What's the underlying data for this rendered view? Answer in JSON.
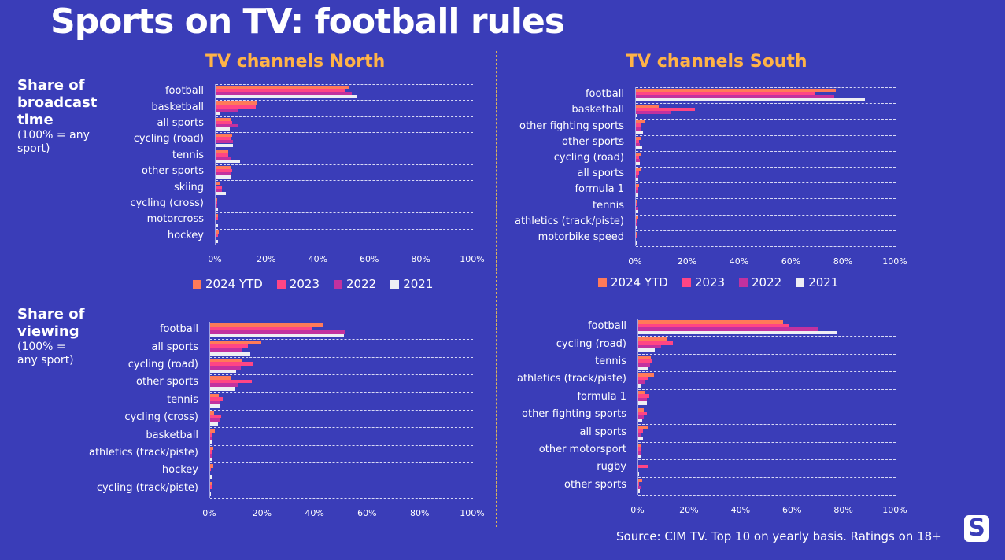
{
  "title": "Sports on TV: football rules",
  "side_labels": {
    "broadcast": {
      "title": "Share of broadcast time",
      "note": "(100% = any sport)"
    },
    "viewing": {
      "title": "Share of viewing",
      "note": "(100% = any sport)"
    }
  },
  "source": "Source: CIM TV. Top 10 on yearly basis. Ratings on 18+",
  "logo": "S",
  "colors": {
    "2024 YTD": "#ff7a59",
    "2023": "#ff4585",
    "2022": "#c2319f",
    "2021": "#eeeef4",
    "background": "#3a3db8",
    "title": "#ffb347"
  },
  "chart_data": [
    {
      "type": "bar",
      "orientation": "horizontal",
      "title": "TV channels North",
      "panel": "broadcast",
      "series_names": [
        "2024 YTD",
        "2023",
        "2022",
        "2021"
      ],
      "xlim": [
        0,
        100
      ],
      "ticks": [
        "0%",
        "20%",
        "40%",
        "60%",
        "80%",
        "100%"
      ],
      "categories": [
        "football",
        "basketball",
        "all sports",
        "cycling (road)",
        "tennis",
        "other sports",
        "skiing",
        "cycling (cross)",
        "motorcross",
        "hockey"
      ],
      "series": [
        {
          "name": "2024 YTD",
          "values": [
            51.7,
            16.1,
            5.9,
            6.5,
            5.0,
            5.7,
            1.6,
            0.6,
            1.0,
            1.1
          ]
        },
        {
          "name": "2023",
          "values": [
            50.1,
            15.7,
            6.5,
            5.9,
            4.9,
            6.5,
            2.5,
            0.7,
            0.9,
            0.8
          ]
        },
        {
          "name": "2022",
          "values": [
            53.0,
            8.7,
            9.0,
            6.8,
            5.9,
            6.2,
            2.5,
            0.7,
            0.0,
            0.3
          ]
        },
        {
          "name": "2021",
          "values": [
            55.1,
            1.5,
            5.5,
            6.8,
            9.4,
            5.9,
            4.1,
            0.9,
            0.9,
            0.9
          ]
        }
      ]
    },
    {
      "type": "bar",
      "orientation": "horizontal",
      "title": "TV channels South",
      "panel": "broadcast",
      "series_names": [
        "2024 YTD",
        "2023",
        "2022",
        "2021"
      ],
      "xlim": [
        0,
        100
      ],
      "ticks": [
        "0%",
        "20%",
        "40%",
        "60%",
        "80%",
        "100%"
      ],
      "categories": [
        "football",
        "basketball",
        "other fighting sports",
        "other sports",
        "cycling (road)",
        "all sports",
        "formula 1",
        "tennis",
        "athletics (track/piste)",
        "motorbike  speed"
      ],
      "series": [
        {
          "name": "2024 YTD",
          "values": [
            76.9,
            8.8,
            3.2,
            1.8,
            2.1,
            1.8,
            1.1,
            0.6,
            0.8,
            0.3
          ]
        },
        {
          "name": "2023",
          "values": [
            68.7,
            22.6,
            1.8,
            1.2,
            1.2,
            1.1,
            0.9,
            0.5,
            0.4,
            0.2
          ]
        },
        {
          "name": "2022",
          "values": [
            76.3,
            13.3,
            2.1,
            1.5,
            1.5,
            0.9,
            0.9,
            0.9,
            0.4,
            0.0
          ]
        },
        {
          "name": "2021",
          "values": [
            88.1,
            0.2,
            2.6,
            2.4,
            1.5,
            0.9,
            0.9,
            0.9,
            0.5,
            0.3
          ]
        }
      ]
    },
    {
      "type": "bar",
      "orientation": "horizontal",
      "title": "",
      "panel": "viewing-north",
      "series_names": [
        "2024 YTD",
        "2023",
        "2022",
        "2021"
      ],
      "xlim": [
        0,
        100
      ],
      "ticks": [
        "0%",
        "20%",
        "40%",
        "60%",
        "80%",
        "100%"
      ],
      "categories": [
        "football",
        "all sports",
        "cycling (road)",
        "other sports",
        "tennis",
        "cycling (cross)",
        "basketball",
        "athletics (track/piste)",
        "hockey",
        "cycling (track/piste)"
      ],
      "series": [
        {
          "name": "2024 YTD",
          "values": [
            43.1,
            19.6,
            12.1,
            7.9,
            3.4,
            1.5,
            1.9,
            1.2,
            1.3,
            0.7
          ]
        },
        {
          "name": "2023",
          "values": [
            39.0,
            14.4,
            16.5,
            15.8,
            4.8,
            4.3,
            0.7,
            0.7,
            0.4,
            0.7
          ]
        },
        {
          "name": "2022",
          "values": [
            51.5,
            11.9,
            11.6,
            10.8,
            4.0,
            4.0,
            0.7,
            0.5,
            0.0,
            0.0
          ]
        },
        {
          "name": "2021",
          "values": [
            50.9,
            15.4,
            9.8,
            9.2,
            3.5,
            3.0,
            1.0,
            1.0,
            0.6,
            0.3
          ]
        }
      ]
    },
    {
      "type": "bar",
      "orientation": "horizontal",
      "title": "",
      "panel": "viewing-south",
      "series_names": [
        "2024 YTD",
        "2023",
        "2022",
        "2021"
      ],
      "xlim": [
        0,
        100
      ],
      "ticks": [
        "0%",
        "20%",
        "40%",
        "60%",
        "80%",
        "100%"
      ],
      "categories": [
        "football",
        "cycling (road)",
        "tennis",
        "athletics (track/piste)",
        "formula 1",
        "other fighting sports",
        "all sports",
        "other motorsport",
        "rugby",
        "other sports"
      ],
      "series": [
        {
          "name": "2024 YTD",
          "values": [
            56.2,
            11.1,
            5.0,
            6.1,
            2.5,
            2.2,
            4.1,
            0.9,
            0.0,
            1.6
          ]
        },
        {
          "name": "2023",
          "values": [
            58.7,
            13.6,
            5.5,
            3.9,
            4.4,
            3.4,
            1.9,
            1.3,
            3.6,
            0.2
          ]
        },
        {
          "name": "2022",
          "values": [
            69.7,
            8.9,
            4.6,
            2.8,
            3.5,
            2.1,
            1.3,
            1.2,
            0.0,
            1.3
          ]
        },
        {
          "name": "2021",
          "values": [
            77.0,
            6.5,
            3.6,
            1.1,
            3.4,
            1.5,
            1.8,
            1.0,
            0.2,
            0.5
          ]
        }
      ]
    }
  ]
}
